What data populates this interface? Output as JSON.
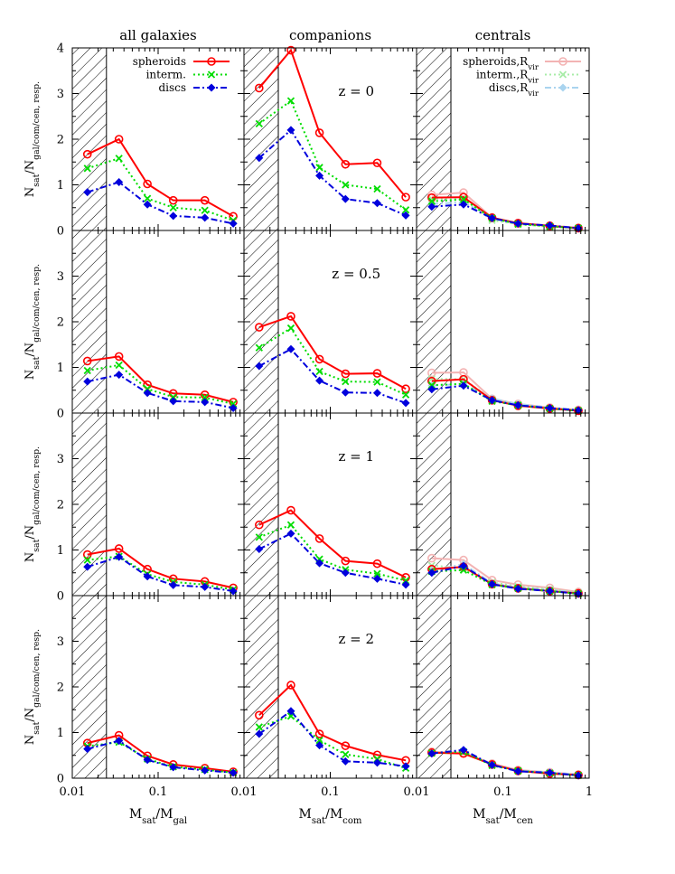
{
  "colors": {
    "spheroids": "#ff0000",
    "interm": "#00dd00",
    "discs": "#0000dd",
    "spheroids_rvir": "#f3b3b3",
    "interm_rvir": "#a8eca8",
    "discs_rvir": "#a9d4ef"
  },
  "chart_data": {
    "type": "line",
    "layout": "4x3 panel grid, shared axes",
    "x_scale": "log",
    "xlim": [
      0.01,
      1
    ],
    "ylim": [
      0,
      4
    ],
    "x_ticks": [
      {
        "value": 0.01,
        "label": "0.01"
      },
      {
        "value": 0.1,
        "label": "0.1"
      },
      {
        "value": 1,
        "label": "1"
      }
    ],
    "y_ticks": [
      0,
      1,
      2,
      3,
      4
    ],
    "hatched_region_x": [
      0.01,
      0.025
    ],
    "column_titles": [
      "all galaxies",
      "companions",
      "centrals"
    ],
    "x_labels": [
      {
        "base": "M",
        "sub": "sat",
        "sep": "/M",
        "sub2": "gal"
      },
      {
        "base": "M",
        "sub": "sat",
        "sep": "/M",
        "sub2": "com"
      },
      {
        "base": "M",
        "sub": "sat",
        "sep": "/M",
        "sub2": "cen"
      }
    ],
    "y_label": {
      "base": "N",
      "sub": "sat",
      "sep": "/N",
      "sub2": "gal/com/cen, resp."
    },
    "row_labels": [
      "z = 0",
      "z = 0.5",
      "z = 1",
      "z = 2"
    ],
    "x": [
      0.015,
      0.035,
      0.075,
      0.15,
      0.35,
      0.75
    ],
    "legend_column_1": [
      {
        "key": "spheroids",
        "label": "spheroids"
      },
      {
        "key": "interm",
        "label": "interm."
      },
      {
        "key": "discs",
        "label": "discs"
      }
    ],
    "legend_column_3": [
      {
        "key": "spheroids_rvir",
        "base": "spheroids,R",
        "sub": "vir"
      },
      {
        "key": "interm_rvir",
        "base": "interm.,R",
        "sub": "vir"
      },
      {
        "key": "discs_rvir",
        "base": "discs,R",
        "sub": "vir"
      }
    ],
    "panels": [
      {
        "row": 0,
        "col": 0,
        "series": {
          "spheroids": [
            1.67,
            2.0,
            1.02,
            0.66,
            0.66,
            0.31
          ],
          "interm": [
            1.36,
            1.58,
            0.7,
            0.5,
            0.44,
            0.22
          ],
          "discs": [
            0.84,
            1.06,
            0.57,
            0.32,
            0.28,
            0.15
          ]
        }
      },
      {
        "row": 0,
        "col": 1,
        "series": {
          "spheroids": [
            3.12,
            3.95,
            2.14,
            1.45,
            1.48,
            0.73
          ],
          "interm": [
            2.34,
            2.84,
            1.38,
            1.0,
            0.91,
            0.45
          ],
          "discs": [
            1.59,
            2.2,
            1.2,
            0.69,
            0.6,
            0.33
          ]
        }
      },
      {
        "row": 0,
        "col": 2,
        "series": {
          "spheroids_rvir": [
            0.78,
            0.83,
            0.28,
            0.16,
            0.11,
            0.06
          ],
          "interm_rvir": [
            0.69,
            0.7,
            0.22,
            0.14,
            0.08,
            0.05
          ],
          "discs_rvir": [
            0.58,
            0.62,
            0.28,
            0.15,
            0.11,
            0.05
          ],
          "spheroids": [
            0.72,
            0.73,
            0.28,
            0.16,
            0.1,
            0.05
          ],
          "interm": [
            0.64,
            0.68,
            0.27,
            0.14,
            0.09,
            0.05
          ],
          "discs": [
            0.52,
            0.57,
            0.27,
            0.15,
            0.11,
            0.05
          ]
        }
      },
      {
        "row": 1,
        "col": 0,
        "series": {
          "spheroids": [
            1.14,
            1.24,
            0.62,
            0.43,
            0.4,
            0.24
          ],
          "interm": [
            0.93,
            1.05,
            0.53,
            0.35,
            0.34,
            0.2
          ],
          "discs": [
            0.69,
            0.84,
            0.44,
            0.26,
            0.24,
            0.11
          ]
        }
      },
      {
        "row": 1,
        "col": 1,
        "series": {
          "spheroids": [
            1.88,
            2.12,
            1.18,
            0.86,
            0.87,
            0.53
          ],
          "interm": [
            1.43,
            1.86,
            0.91,
            0.69,
            0.68,
            0.4
          ],
          "discs": [
            1.03,
            1.4,
            0.71,
            0.45,
            0.44,
            0.22
          ]
        }
      },
      {
        "row": 1,
        "col": 2,
        "series": {
          "spheroids_rvir": [
            0.88,
            0.89,
            0.31,
            0.2,
            0.12,
            0.07
          ],
          "interm_rvir": [
            0.75,
            0.74,
            0.3,
            0.18,
            0.1,
            0.06
          ],
          "discs_rvir": [
            0.6,
            0.64,
            0.32,
            0.2,
            0.12,
            0.07
          ],
          "spheroids": [
            0.7,
            0.74,
            0.28,
            0.16,
            0.1,
            0.05
          ],
          "interm": [
            0.61,
            0.64,
            0.26,
            0.17,
            0.1,
            0.05
          ],
          "discs": [
            0.52,
            0.6,
            0.28,
            0.17,
            0.11,
            0.06
          ]
        }
      },
      {
        "row": 2,
        "col": 0,
        "series": {
          "spheroids": [
            0.9,
            1.03,
            0.58,
            0.37,
            0.31,
            0.17
          ],
          "interm": [
            0.78,
            0.86,
            0.47,
            0.3,
            0.24,
            0.13
          ],
          "discs": [
            0.63,
            0.85,
            0.42,
            0.23,
            0.19,
            0.1
          ]
        }
      },
      {
        "row": 2,
        "col": 1,
        "series": {
          "spheroids": [
            1.55,
            1.87,
            1.25,
            0.76,
            0.7,
            0.4
          ],
          "interm": [
            1.28,
            1.55,
            0.8,
            0.57,
            0.48,
            0.33
          ],
          "discs": [
            1.02,
            1.36,
            0.71,
            0.5,
            0.37,
            0.24
          ]
        }
      },
      {
        "row": 2,
        "col": 2,
        "series": {
          "spheroids_rvir": [
            0.82,
            0.78,
            0.34,
            0.24,
            0.17,
            0.08
          ],
          "interm_rvir": [
            0.66,
            0.6,
            0.29,
            0.2,
            0.14,
            0.07
          ],
          "discs_rvir": [
            0.55,
            0.69,
            0.27,
            0.18,
            0.13,
            0.06
          ],
          "spheroids": [
            0.58,
            0.63,
            0.25,
            0.16,
            0.1,
            0.05
          ],
          "interm": [
            0.53,
            0.56,
            0.24,
            0.16,
            0.1,
            0.04
          ],
          "discs": [
            0.5,
            0.65,
            0.25,
            0.15,
            0.1,
            0.04
          ]
        }
      },
      {
        "row": 3,
        "col": 0,
        "series": {
          "spheroids": [
            0.77,
            0.94,
            0.49,
            0.3,
            0.22,
            0.14
          ],
          "interm": [
            0.7,
            0.79,
            0.42,
            0.25,
            0.19,
            0.12
          ],
          "discs": [
            0.64,
            0.82,
            0.4,
            0.24,
            0.17,
            0.12
          ]
        }
      },
      {
        "row": 3,
        "col": 1,
        "series": {
          "spheroids": [
            1.38,
            2.04,
            0.97,
            0.71,
            0.51,
            0.39
          ],
          "interm": [
            1.12,
            1.36,
            0.83,
            0.52,
            0.42,
            0.22
          ],
          "discs": [
            0.97,
            1.47,
            0.72,
            0.37,
            0.34,
            0.26
          ]
        }
      },
      {
        "row": 3,
        "col": 2,
        "series": {
          "spheroids_rvir": [
            0.58,
            0.56,
            0.32,
            0.18,
            0.13,
            0.08
          ],
          "interm_rvir": [
            0.56,
            0.58,
            0.3,
            0.16,
            0.12,
            0.07
          ],
          "discs_rvir": [
            0.55,
            0.6,
            0.3,
            0.17,
            0.13,
            0.08
          ],
          "spheroids": [
            0.56,
            0.54,
            0.3,
            0.16,
            0.1,
            0.07
          ],
          "interm": [
            0.55,
            0.58,
            0.28,
            0.16,
            0.11,
            0.06
          ],
          "discs": [
            0.54,
            0.62,
            0.29,
            0.15,
            0.12,
            0.06
          ]
        }
      }
    ]
  }
}
